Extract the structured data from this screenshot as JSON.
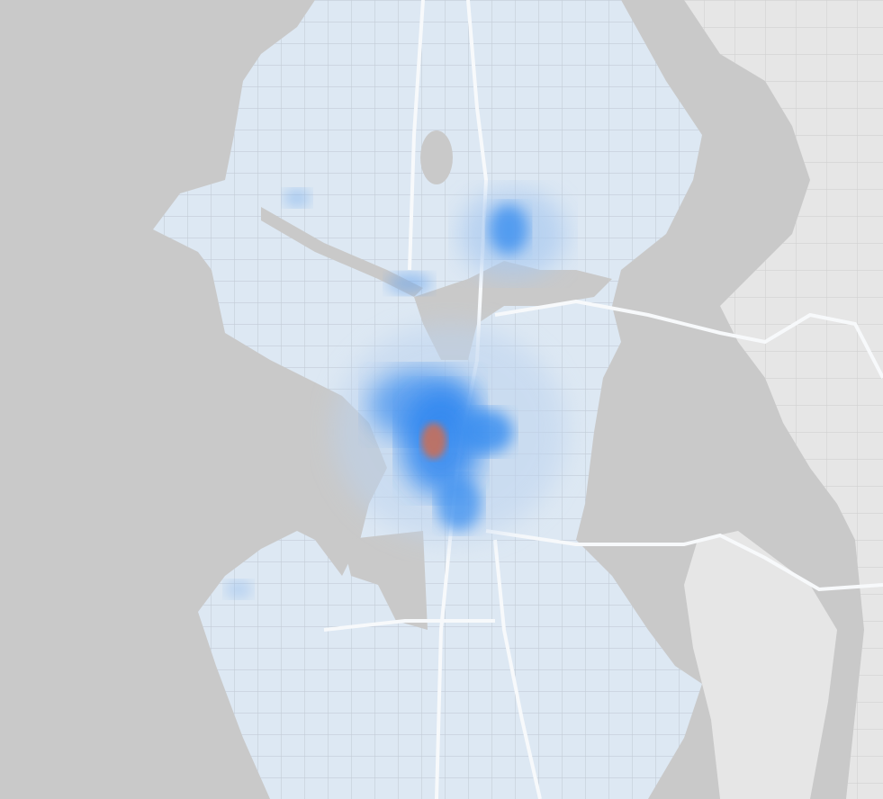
{
  "map": {
    "type": "heatmap",
    "labels": [],
    "colors": {
      "water": "#c9c9c9",
      "land": "#e6e6e6",
      "heat_land": "#dce7f2",
      "roads": "#c4ccd6",
      "highways": "#f5f7fa",
      "heat_low": "#5ea3ee",
      "heat_mid": "#2f86f0",
      "heat_high": "#c8705a"
    }
  }
}
